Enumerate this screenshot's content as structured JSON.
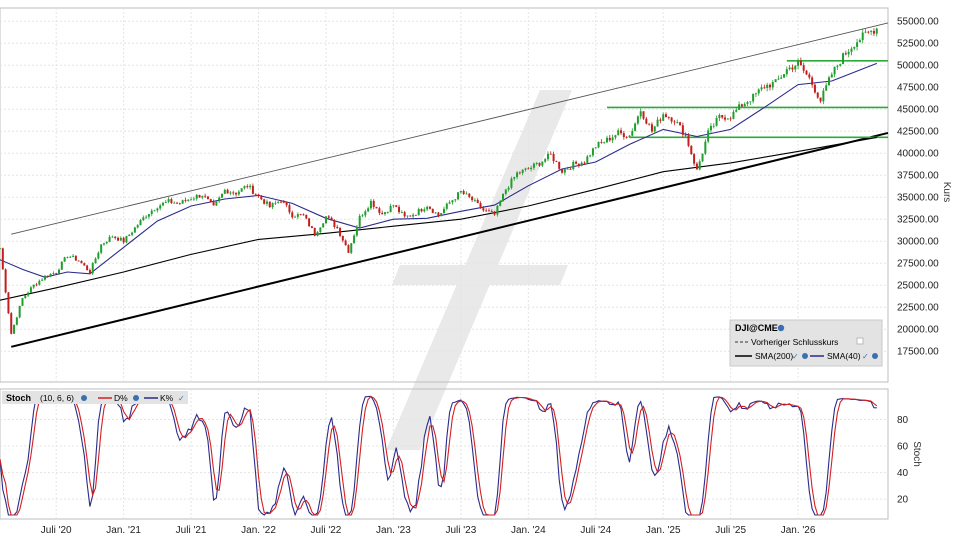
{
  "chart_data": [
    {
      "type": "candlestick",
      "symbol": "DJI@CME",
      "ylabel": "Kurs",
      "ylim": [
        14000,
        56500
      ],
      "y_ticks": [
        "55000.00",
        "52500.00",
        "50000.00",
        "47500.00",
        "45000.00",
        "42500.00",
        "40000.00",
        "37500.00",
        "35000.00",
        "32500.00",
        "30000.00",
        "27500.00",
        "25000.00",
        "22500.00",
        "20000.00",
        "17500.00"
      ],
      "x_ticks": [
        "Juli '20",
        "Jan. '21",
        "Juli '21",
        "Jan. '22",
        "Juli '22",
        "Jan. '23",
        "Juli '23",
        "Jan. '24",
        "Juli '24",
        "Jan. '25",
        "Juli '25",
        "Jan. '26"
      ],
      "x_tick_dates": [
        "2020-07",
        "2021-01",
        "2021-07",
        "2022-01",
        "2022-07",
        "2023-01",
        "2023-07",
        "2024-01",
        "2024-07",
        "2025-01",
        "2025-07",
        "2026-01"
      ],
      "x_range": [
        "2020-02",
        "2026-09"
      ],
      "price_path": [
        [
          "2020-02",
          29200
        ],
        [
          "2020-03",
          19500
        ],
        [
          "2020-04",
          23500
        ],
        [
          "2020-05",
          25000
        ],
        [
          "2020-06",
          26000
        ],
        [
          "2020-07",
          26500
        ],
        [
          "2020-08",
          28400
        ],
        [
          "2020-09",
          27800
        ],
        [
          "2020-10",
          26500
        ],
        [
          "2020-11",
          29600
        ],
        [
          "2020-12",
          30600
        ],
        [
          "2021-01",
          30000
        ],
        [
          "2021-02",
          31500
        ],
        [
          "2021-03",
          33000
        ],
        [
          "2021-04",
          34000
        ],
        [
          "2021-05",
          34500
        ],
        [
          "2021-06",
          34300
        ],
        [
          "2021-07",
          34900
        ],
        [
          "2021-08",
          35300
        ],
        [
          "2021-09",
          33800
        ],
        [
          "2021-10",
          35800
        ],
        [
          "2021-11",
          35500
        ],
        [
          "2021-12",
          36300
        ],
        [
          "2022-01",
          35100
        ],
        [
          "2022-02",
          33900
        ],
        [
          "2022-03",
          34700
        ],
        [
          "2022-04",
          33000
        ],
        [
          "2022-05",
          32900
        ],
        [
          "2022-06",
          30800
        ],
        [
          "2022-07",
          32800
        ],
        [
          "2022-08",
          31500
        ],
        [
          "2022-09",
          28900
        ],
        [
          "2022-10",
          32700
        ],
        [
          "2022-11",
          34500
        ],
        [
          "2022-12",
          33100
        ],
        [
          "2023-01",
          34100
        ],
        [
          "2023-02",
          32700
        ],
        [
          "2023-03",
          33200
        ],
        [
          "2023-04",
          34100
        ],
        [
          "2023-05",
          32900
        ],
        [
          "2023-06",
          34400
        ],
        [
          "2023-07",
          35600
        ],
        [
          "2023-08",
          34700
        ],
        [
          "2023-09",
          33500
        ],
        [
          "2023-10",
          33000
        ],
        [
          "2023-11",
          35900
        ],
        [
          "2023-12",
          37700
        ],
        [
          "2024-01",
          38200
        ],
        [
          "2024-02",
          38900
        ],
        [
          "2024-03",
          39800
        ],
        [
          "2024-04",
          38000
        ],
        [
          "2024-05",
          38700
        ],
        [
          "2024-06",
          39100
        ],
        [
          "2024-07",
          40800
        ],
        [
          "2024-08",
          41500
        ],
        [
          "2024-09",
          42300
        ],
        [
          "2024-10",
          42000
        ],
        [
          "2024-11",
          44900
        ],
        [
          "2024-12",
          42500
        ],
        [
          "2025-01",
          44500
        ],
        [
          "2025-02",
          43800
        ],
        [
          "2025-03",
          42000
        ],
        [
          "2025-04",
          38000
        ],
        [
          "2025-05",
          42300
        ],
        [
          "2025-06",
          44100
        ],
        [
          "2025-07",
          44200
        ],
        [
          "2025-08",
          45500
        ],
        [
          "2025-09",
          46400
        ],
        [
          "2025-10",
          47600
        ],
        [
          "2025-11",
          48000
        ],
        [
          "2025-12",
          49500
        ],
        [
          "2026-01",
          50200
        ],
        [
          "2026-02",
          48500
        ],
        [
          "2026-03",
          46000
        ],
        [
          "2026-04",
          49000
        ],
        [
          "2026-05",
          51000
        ],
        [
          "2026-06",
          52500
        ],
        [
          "2026-07",
          53500
        ],
        [
          "2026-08",
          54200
        ]
      ],
      "series": [
        {
          "name": "SMA(200)",
          "color": "#000000",
          "points": [
            [
              "2020-02",
              23300
            ],
            [
              "2020-07",
              24700
            ],
            [
              "2021-01",
              26500
            ],
            [
              "2021-07",
              28500
            ],
            [
              "2022-01",
              30200
            ],
            [
              "2022-07",
              30900
            ],
            [
              "2023-01",
              31700
            ],
            [
              "2023-07",
              32500
            ],
            [
              "2024-01",
              34000
            ],
            [
              "2024-07",
              35900
            ],
            [
              "2025-01",
              37900
            ],
            [
              "2025-07",
              38900
            ],
            [
              "2026-01",
              40200
            ],
            [
              "2026-08",
              41800
            ]
          ]
        },
        {
          "name": "SMA(40)",
          "color": "#2b2b8c",
          "points": [
            [
              "2020-02",
              27900
            ],
            [
              "2020-04",
              26800
            ],
            [
              "2020-06",
              25900
            ],
            [
              "2020-08",
              26500
            ],
            [
              "2020-10",
              26300
            ],
            [
              "2021-01",
              29300
            ],
            [
              "2021-04",
              32300
            ],
            [
              "2021-07",
              34000
            ],
            [
              "2021-10",
              34800
            ],
            [
              "2022-01",
              35200
            ],
            [
              "2022-04",
              34300
            ],
            [
              "2022-07",
              32600
            ],
            [
              "2022-10",
              31500
            ],
            [
              "2023-01",
              32500
            ],
            [
              "2023-04",
              32600
            ],
            [
              "2023-07",
              33400
            ],
            [
              "2023-10",
              34100
            ],
            [
              "2024-01",
              36300
            ],
            [
              "2024-04",
              38200
            ],
            [
              "2024-07",
              39000
            ],
            [
              "2024-10",
              41000
            ],
            [
              "2025-01",
              42700
            ],
            [
              "2025-04",
              41900
            ],
            [
              "2025-07",
              42700
            ],
            [
              "2025-10",
              45200
            ],
            [
              "2026-01",
              47800
            ],
            [
              "2026-04",
              48200
            ],
            [
              "2026-08",
              50200
            ]
          ]
        }
      ],
      "trendlines": [
        {
          "kind": "channel-top",
          "color": "#555555",
          "from": [
            "2020-03",
            30800
          ],
          "to": [
            "2026-09",
            54800
          ]
        },
        {
          "kind": "support",
          "color": "#000000",
          "from": [
            "2020-03",
            18000
          ],
          "to": [
            "2026-09",
            42300
          ]
        }
      ],
      "horizontal_levels": [
        {
          "y": 45200,
          "from": "2024-08",
          "color": "#2eaa3a"
        },
        {
          "y": 41800,
          "from": "2024-10",
          "color": "#2eaa3a"
        },
        {
          "y": 50500,
          "from": "2025-12",
          "color": "#2eaa3a"
        }
      ],
      "legend": {
        "title": "DJI@CME",
        "prev_close": "Vorheriger Schlusskurs",
        "sma200": "SMA(200)",
        "sma40": "SMA(40)"
      },
      "legend_position": "bottom-right"
    },
    {
      "type": "line",
      "title": "Stoch",
      "params": "(10, 6, 6)",
      "ylabel": "Stoch",
      "ylim": [
        5,
        103
      ],
      "y_ticks": [
        "80",
        "60",
        "40",
        "20"
      ],
      "series": [
        {
          "name": "D%",
          "color": "#d42020",
          "key": "d"
        },
        {
          "name": "K%",
          "color": "#2b2b8c",
          "key": "k"
        }
      ]
    }
  ]
}
